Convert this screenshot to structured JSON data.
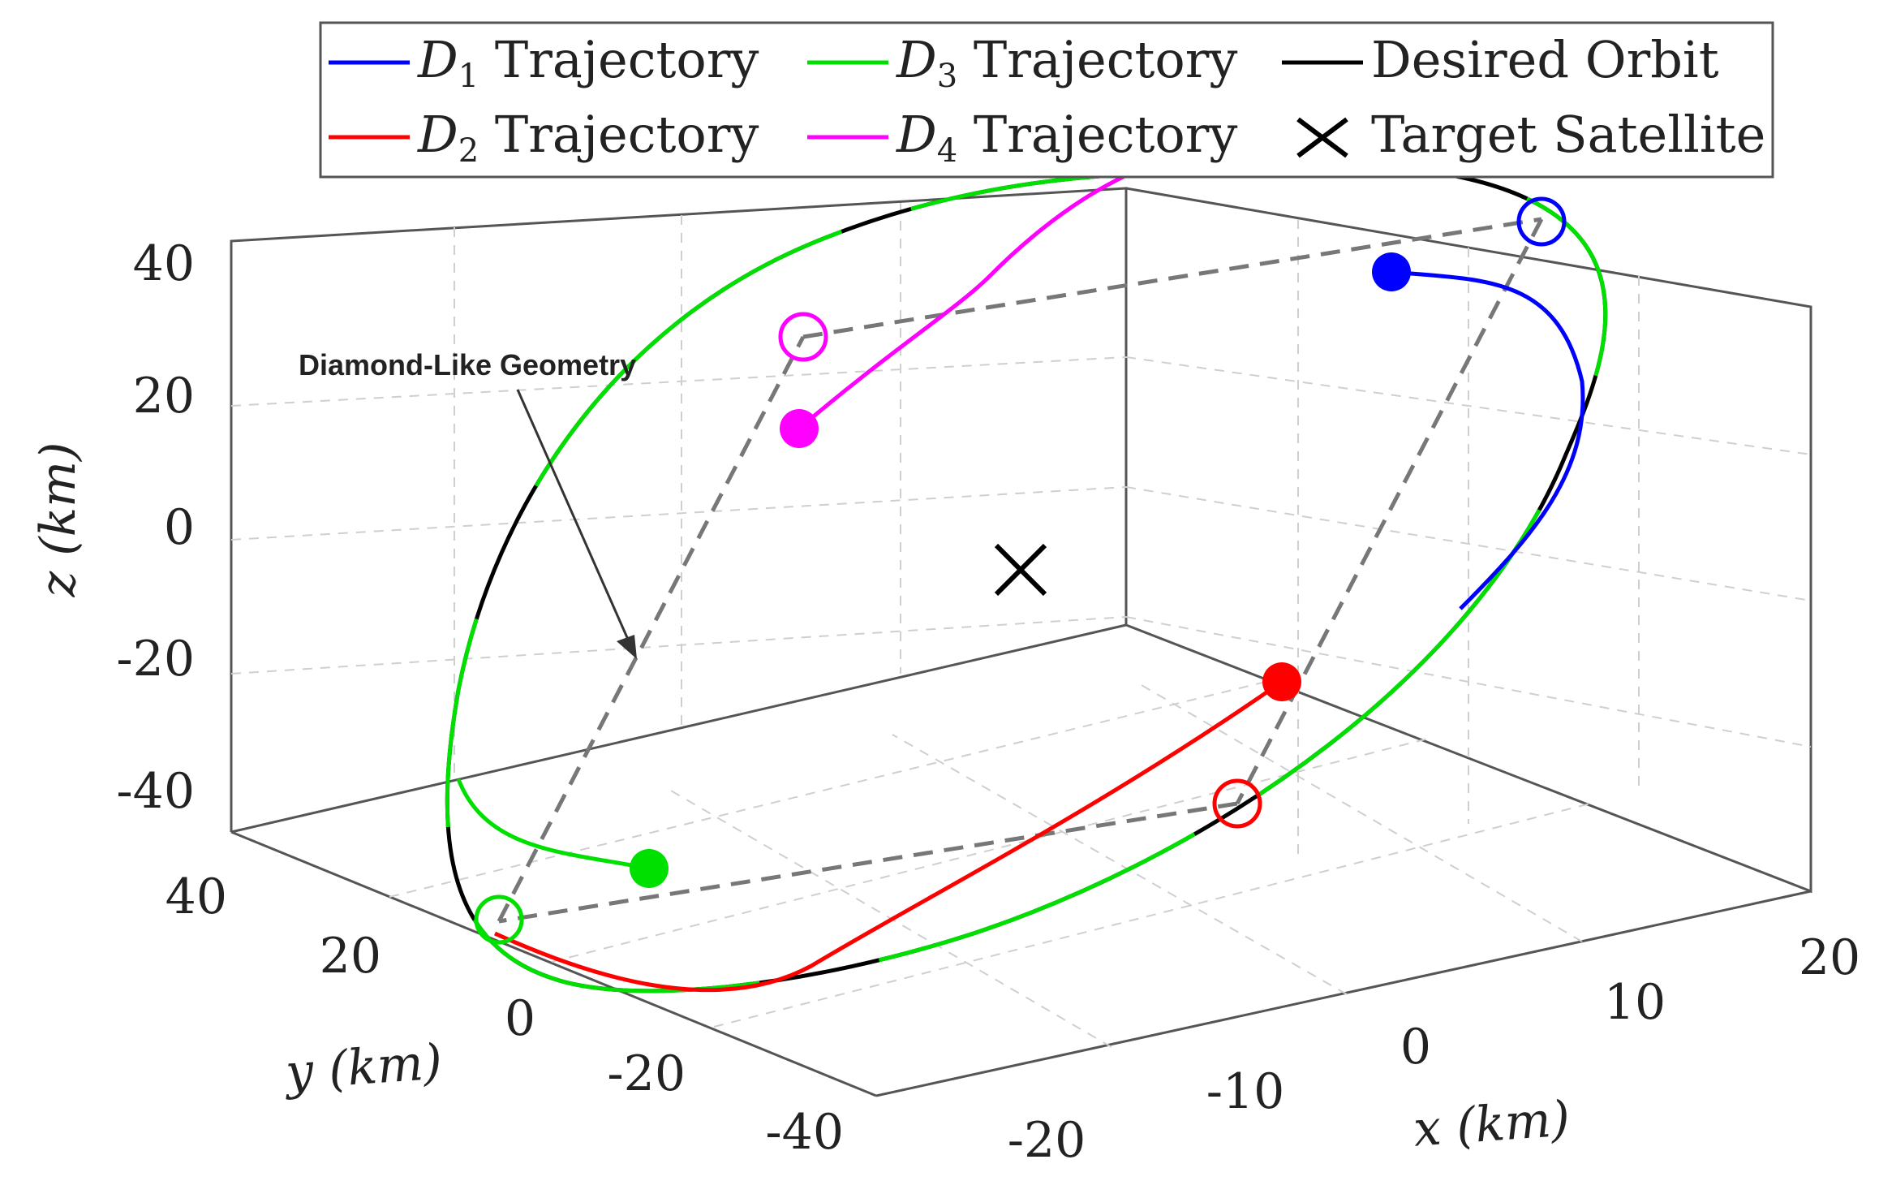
{
  "chart_data": {
    "type": "line3d",
    "xlabel": "x (km)",
    "ylabel": "y (km)",
    "zlabel": "z (km)",
    "xlim": [
      -20,
      20
    ],
    "ylim": [
      -40,
      40
    ],
    "zlim": [
      -40,
      40
    ],
    "x_ticks": [
      "-20",
      "-10",
      "0",
      "10",
      "20"
    ],
    "y_ticks": [
      "-40",
      "-20",
      "0",
      "20",
      "40"
    ],
    "z_ticks": [
      "-40",
      "-20",
      "0",
      "20",
      "40"
    ],
    "grid": true,
    "legend_placement": "top",
    "legend": [
      {
        "label": "D",
        "sub": "1",
        "rest": " Trajectory",
        "color": "#0000ff",
        "marker": "line"
      },
      {
        "label": "D",
        "sub": "3",
        "rest": " Trajectory",
        "color": "#00e000",
        "marker": "line"
      },
      {
        "label": "Desired Orbit",
        "sub": "",
        "rest": "",
        "color": "#000000",
        "marker": "line"
      },
      {
        "label": "D",
        "sub": "2",
        "rest": " Trajectory",
        "color": "#ff0000",
        "marker": "line"
      },
      {
        "label": "D",
        "sub": "4",
        "rest": " Trajectory",
        "color": "#ff00ff",
        "marker": "line"
      },
      {
        "label": "Target Satellite",
        "sub": "",
        "rest": "",
        "color": "#000000",
        "marker": "x"
      }
    ],
    "desired_orbit": {
      "name": "Desired Orbit",
      "color": "#000000"
    },
    "series": [
      {
        "name": "D1 Trajectory",
        "color": "#0000ff",
        "start": [
          12,
          10,
          39
        ],
        "end": [
          14,
          -5,
          48
        ]
      },
      {
        "name": "D2 Trajectory",
        "color": "#ff0000",
        "start": [
          4,
          -18,
          -20
        ],
        "end": [
          -12,
          -10,
          -43
        ]
      },
      {
        "name": "D3 Trajectory",
        "color": "#00e000",
        "start": [
          -13,
          20,
          -38
        ],
        "end": [
          -15,
          40,
          -52
        ]
      },
      {
        "name": "D4 Trajectory",
        "color": "#ff00ff",
        "start": [
          -8,
          40,
          17
        ],
        "end": [
          -8,
          38,
          32
        ]
      }
    ],
    "target_satellite": {
      "name": "Target Satellite",
      "position": [
        0,
        0,
        0
      ]
    },
    "annotation": {
      "text": "Diamond-Like Geometry"
    }
  }
}
